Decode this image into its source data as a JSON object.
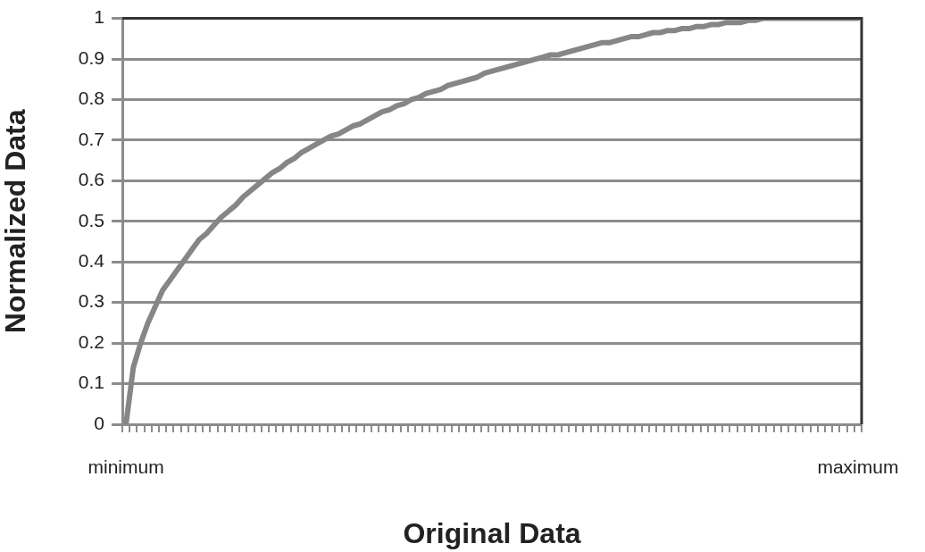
{
  "chart_data": {
    "type": "line",
    "xlabel": "Original Data",
    "ylabel": "Normalized Data",
    "categories": [
      "minimum",
      null,
      null,
      null,
      null,
      null,
      null,
      null,
      null,
      null,
      null,
      null,
      null,
      null,
      null,
      null,
      null,
      null,
      null,
      null,
      null,
      null,
      null,
      null,
      null,
      null,
      null,
      null,
      null,
      null,
      null,
      null,
      null,
      null,
      null,
      null,
      null,
      null,
      null,
      null,
      null,
      null,
      null,
      null,
      null,
      null,
      null,
      null,
      null,
      null,
      null,
      null,
      null,
      null,
      null,
      null,
      null,
      null,
      null,
      null,
      null,
      null,
      null,
      null,
      null,
      null,
      null,
      null,
      null,
      null,
      null,
      null,
      null,
      null,
      null,
      null,
      null,
      null,
      null,
      null,
      null,
      null,
      null,
      null,
      null,
      null,
      null,
      null,
      null,
      null,
      null,
      null,
      null,
      null,
      null,
      null,
      null,
      null,
      null,
      null,
      "maximum"
    ],
    "values": [
      0,
      0.14,
      0.2,
      0.25,
      0.29,
      0.33,
      0.355,
      0.38,
      0.405,
      0.43,
      0.455,
      0.47,
      0.49,
      0.51,
      0.525,
      0.54,
      0.56,
      0.575,
      0.59,
      0.605,
      0.62,
      0.63,
      0.645,
      0.655,
      0.67,
      0.68,
      0.69,
      0.7,
      0.71,
      0.715,
      0.725,
      0.735,
      0.74,
      0.75,
      0.76,
      0.77,
      0.775,
      0.785,
      0.79,
      0.8,
      0.805,
      0.815,
      0.82,
      0.825,
      0.835,
      0.84,
      0.845,
      0.85,
      0.855,
      0.865,
      0.87,
      0.875,
      0.88,
      0.885,
      0.89,
      0.895,
      0.9,
      0.905,
      0.91,
      0.91,
      0.915,
      0.92,
      0.925,
      0.93,
      0.935,
      0.94,
      0.94,
      0.945,
      0.95,
      0.955,
      0.955,
      0.96,
      0.965,
      0.965,
      0.97,
      0.97,
      0.975,
      0.975,
      0.98,
      0.98,
      0.985,
      0.985,
      0.99,
      0.99,
      0.99,
      0.995,
      0.995,
      1,
      1,
      1,
      1,
      1,
      1,
      1,
      1,
      1,
      1,
      1,
      1,
      1,
      1
    ],
    "color": "#868686",
    "ylim": [
      0,
      1
    ],
    "yticks": [
      0,
      0.1,
      0.2,
      0.3,
      0.4,
      0.5,
      0.6,
      0.7,
      0.8,
      0.9,
      1
    ],
    "grid": "y",
    "marker": "none",
    "legend": false
  }
}
